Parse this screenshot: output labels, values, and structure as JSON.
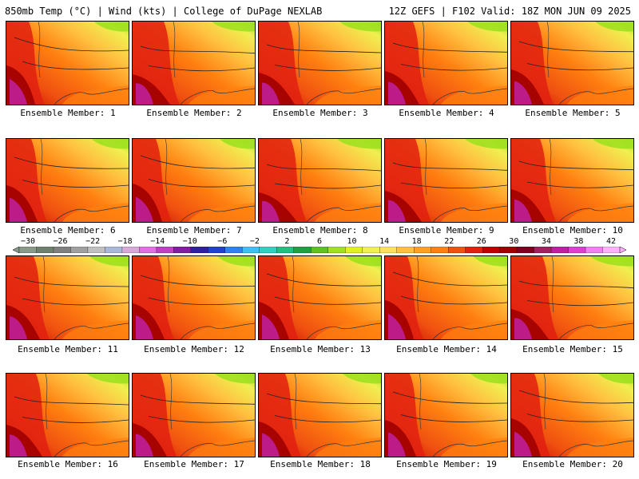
{
  "header": {
    "left": "850mb Temp (°C) | Wind (kts) | College of DuPage NEXLAB",
    "right": "12Z GEFS | F102 Valid: 18Z MON JUN 09 2025"
  },
  "members": [
    {
      "label": "Ensemble Member: 1"
    },
    {
      "label": "Ensemble Member: 2"
    },
    {
      "label": "Ensemble Member: 3"
    },
    {
      "label": "Ensemble Member: 4"
    },
    {
      "label": "Ensemble Member: 5"
    },
    {
      "label": "Ensemble Member: 6"
    },
    {
      "label": "Ensemble Member: 7"
    },
    {
      "label": "Ensemble Member: 8"
    },
    {
      "label": "Ensemble Member: 9"
    },
    {
      "label": "Ensemble Member: 10"
    },
    {
      "label": "Ensemble Member: 11"
    },
    {
      "label": "Ensemble Member: 12"
    },
    {
      "label": "Ensemble Member: 13"
    },
    {
      "label": "Ensemble Member: 14"
    },
    {
      "label": "Ensemble Member: 15"
    },
    {
      "label": "Ensemble Member: 16"
    },
    {
      "label": "Ensemble Member: 17"
    },
    {
      "label": "Ensemble Member: 18"
    },
    {
      "label": "Ensemble Member: 19"
    },
    {
      "label": "Ensemble Member: 20"
    }
  ],
  "colorbar": {
    "ticks": [
      "−30",
      "−26",
      "−22",
      "−18",
      "−14",
      "−10",
      "−6",
      "−2",
      "2",
      "6",
      "10",
      "14",
      "18",
      "22",
      "26",
      "30",
      "34",
      "38",
      "42"
    ],
    "colors": [
      "#8a9a8a",
      "#708070",
      "#808080",
      "#a0a0a0",
      "#c0c0c0",
      "#a8b8d8",
      "#d8a8d8",
      "#e070e0",
      "#c040c0",
      "#8020a0",
      "#3020a0",
      "#2040d0",
      "#3080f0",
      "#40c0f0",
      "#30d0c0",
      "#20c080",
      "#20a040",
      "#60c020",
      "#a0e020",
      "#e0f020",
      "#f0f050",
      "#ffe060",
      "#ffc040",
      "#ffa020",
      "#ff8010",
      "#f05010",
      "#e02010",
      "#c00000",
      "#a00000",
      "#800020",
      "#a02060",
      "#c020a0",
      "#e040d0",
      "#f080f0",
      "#ffb0ff"
    ]
  }
}
